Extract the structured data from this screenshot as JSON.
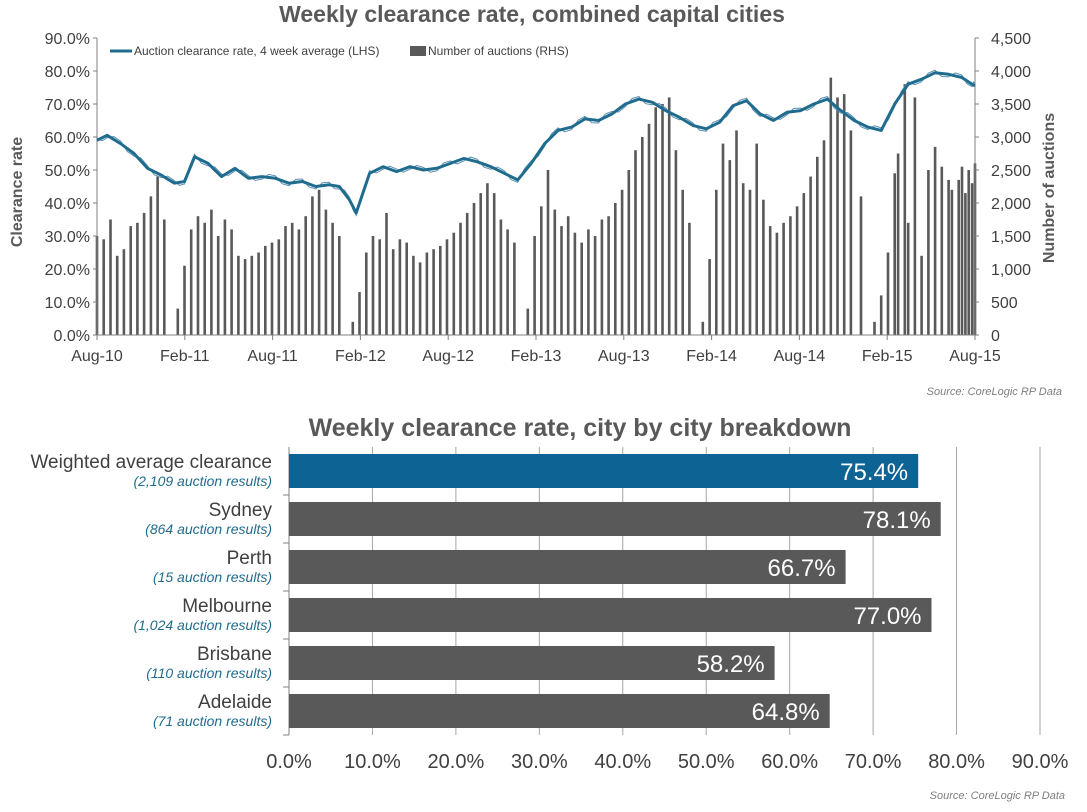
{
  "chart_data": [
    {
      "type": "line",
      "title": "Weekly clearance rate, combined capital cities",
      "ylabel": "Clearance rate",
      "y2label": "Number of auctions",
      "ylim": [
        0,
        90
      ],
      "y2lim": [
        0,
        4500
      ],
      "yticks": [
        "0.0%",
        "10.0%",
        "20.0%",
        "30.0%",
        "40.0%",
        "50.0%",
        "60.0%",
        "70.0%",
        "80.0%",
        "90.0%"
      ],
      "y2ticks": [
        "0",
        "500",
        "1,000",
        "1,500",
        "2,000",
        "2,500",
        "3,000",
        "3,500",
        "4,000",
        "4,500"
      ],
      "xticks": [
        "Aug-10",
        "Feb-11",
        "Aug-11",
        "Feb-12",
        "Aug-12",
        "Feb-13",
        "Aug-13",
        "Feb-14",
        "Aug-14",
        "Feb-15",
        "Aug-15"
      ],
      "xlim": [
        "2010-08-01",
        "2015-08-01"
      ],
      "grid": false,
      "legend": "top-left",
      "source": "Source: CoreLogic RP Data",
      "series": [
        {
          "name": "Auction clearance rate, 4 week average (LHS)",
          "axis": "left",
          "type": "line",
          "color": "#1f6c8e",
          "points": [
            [
              "2010-08-01",
              59.0
            ],
            [
              "2010-08-22",
              60.5
            ],
            [
              "2010-09-19",
              58.0
            ],
            [
              "2010-10-17",
              55.0
            ],
            [
              "2010-11-14",
              50.5
            ],
            [
              "2010-12-12",
              48.5
            ],
            [
              "2011-01-09",
              46.0
            ],
            [
              "2011-01-30",
              46.5
            ],
            [
              "2011-02-20",
              54.0
            ],
            [
              "2011-03-20",
              52.0
            ],
            [
              "2011-04-17",
              48.0
            ],
            [
              "2011-05-15",
              50.5
            ],
            [
              "2011-06-12",
              47.5
            ],
            [
              "2011-07-10",
              48.0
            ],
            [
              "2011-08-07",
              47.5
            ],
            [
              "2011-09-04",
              46.0
            ],
            [
              "2011-10-02",
              46.5
            ],
            [
              "2011-10-30",
              45.0
            ],
            [
              "2011-11-27",
              45.5
            ],
            [
              "2011-12-18",
              45.0
            ],
            [
              "2012-01-08",
              41.0
            ],
            [
              "2012-01-22",
              37.0
            ],
            [
              "2012-02-19",
              49.0
            ],
            [
              "2012-03-18",
              51.0
            ],
            [
              "2012-04-15",
              49.5
            ],
            [
              "2012-05-13",
              51.0
            ],
            [
              "2012-06-10",
              50.0
            ],
            [
              "2012-07-08",
              50.5
            ],
            [
              "2012-08-05",
              52.0
            ],
            [
              "2012-09-02",
              53.5
            ],
            [
              "2012-09-30",
              52.5
            ],
            [
              "2012-10-28",
              51.0
            ],
            [
              "2012-11-25",
              49.0
            ],
            [
              "2012-12-23",
              47.0
            ],
            [
              "2013-01-20",
              52.0
            ],
            [
              "2013-02-17",
              58.0
            ],
            [
              "2013-03-17",
              62.0
            ],
            [
              "2013-04-14",
              63.0
            ],
            [
              "2013-05-12",
              65.5
            ],
            [
              "2013-06-09",
              65.0
            ],
            [
              "2013-07-07",
              67.0
            ],
            [
              "2013-08-04",
              70.0
            ],
            [
              "2013-09-01",
              71.5
            ],
            [
              "2013-09-29",
              70.5
            ],
            [
              "2013-10-27",
              68.0
            ],
            [
              "2013-11-24",
              66.0
            ],
            [
              "2013-12-22",
              63.5
            ],
            [
              "2014-01-19",
              62.5
            ],
            [
              "2014-02-16",
              64.5
            ],
            [
              "2014-03-16",
              69.5
            ],
            [
              "2014-04-13",
              71.0
            ],
            [
              "2014-05-11",
              67.0
            ],
            [
              "2014-06-08",
              65.0
            ],
            [
              "2014-07-06",
              67.5
            ],
            [
              "2014-08-03",
              68.0
            ],
            [
              "2014-08-31",
              70.0
            ],
            [
              "2014-09-28",
              71.5
            ],
            [
              "2014-10-26",
              68.0
            ],
            [
              "2014-11-23",
              65.0
            ],
            [
              "2014-12-21",
              63.0
            ],
            [
              "2015-01-18",
              62.0
            ],
            [
              "2015-02-15",
              70.0
            ],
            [
              "2015-03-15",
              76.0
            ],
            [
              "2015-04-12",
              77.5
            ],
            [
              "2015-05-10",
              79.5
            ],
            [
              "2015-06-07",
              79.0
            ],
            [
              "2015-07-05",
              78.0
            ],
            [
              "2015-07-26",
              76.0
            ],
            [
              "2015-08-01",
              75.5
            ]
          ]
        },
        {
          "name": "Number of auctions (RHS)",
          "axis": "right",
          "type": "bar",
          "color": "#595959",
          "points": [
            [
              "2010-08-01",
              1500
            ],
            [
              "2010-08-15",
              1450
            ],
            [
              "2010-08-29",
              1750
            ],
            [
              "2010-09-12",
              1200
            ],
            [
              "2010-09-26",
              1300
            ],
            [
              "2010-10-10",
              1650
            ],
            [
              "2010-10-24",
              1700
            ],
            [
              "2010-11-07",
              1850
            ],
            [
              "2010-11-21",
              2100
            ],
            [
              "2010-12-05",
              2400
            ],
            [
              "2010-12-19",
              1750
            ],
            [
              "2011-01-02",
              0
            ],
            [
              "2011-01-16",
              400
            ],
            [
              "2011-01-30",
              1050
            ],
            [
              "2011-02-13",
              1600
            ],
            [
              "2011-02-27",
              1800
            ],
            [
              "2011-03-13",
              1700
            ],
            [
              "2011-03-27",
              1900
            ],
            [
              "2011-04-10",
              1500
            ],
            [
              "2011-04-24",
              1750
            ],
            [
              "2011-05-08",
              1600
            ],
            [
              "2011-05-22",
              1200
            ],
            [
              "2011-06-05",
              1150
            ],
            [
              "2011-06-19",
              1200
            ],
            [
              "2011-07-03",
              1250
            ],
            [
              "2011-07-17",
              1350
            ],
            [
              "2011-07-31",
              1400
            ],
            [
              "2011-08-14",
              1450
            ],
            [
              "2011-08-28",
              1650
            ],
            [
              "2011-09-11",
              1700
            ],
            [
              "2011-09-25",
              1600
            ],
            [
              "2011-10-09",
              1800
            ],
            [
              "2011-10-23",
              2100
            ],
            [
              "2011-11-06",
              2200
            ],
            [
              "2011-11-20",
              1900
            ],
            [
              "2011-12-04",
              1700
            ],
            [
              "2011-12-18",
              1500
            ],
            [
              "2012-01-01",
              0
            ],
            [
              "2012-01-15",
              200
            ],
            [
              "2012-01-29",
              650
            ],
            [
              "2012-02-12",
              1250
            ],
            [
              "2012-02-26",
              1500
            ],
            [
              "2012-03-11",
              1450
            ],
            [
              "2012-03-25",
              1850
            ],
            [
              "2012-04-08",
              1300
            ],
            [
              "2012-04-22",
              1450
            ],
            [
              "2012-05-06",
              1400
            ],
            [
              "2012-05-20",
              1200
            ],
            [
              "2012-06-03",
              1100
            ],
            [
              "2012-06-17",
              1250
            ],
            [
              "2012-07-01",
              1300
            ],
            [
              "2012-07-15",
              1350
            ],
            [
              "2012-07-29",
              1450
            ],
            [
              "2012-08-12",
              1550
            ],
            [
              "2012-08-26",
              1700
            ],
            [
              "2012-09-09",
              1850
            ],
            [
              "2012-09-23",
              2000
            ],
            [
              "2012-10-07",
              2150
            ],
            [
              "2012-10-21",
              2300
            ],
            [
              "2012-11-04",
              2150
            ],
            [
              "2012-11-18",
              1750
            ],
            [
              "2012-12-02",
              1600
            ],
            [
              "2012-12-16",
              1400
            ],
            [
              "2012-12-30",
              0
            ],
            [
              "2013-01-13",
              400
            ],
            [
              "2013-01-27",
              1500
            ],
            [
              "2013-02-10",
              1950
            ],
            [
              "2013-02-24",
              2500
            ],
            [
              "2013-03-10",
              1900
            ],
            [
              "2013-03-24",
              1650
            ],
            [
              "2013-04-07",
              1800
            ],
            [
              "2013-04-21",
              1550
            ],
            [
              "2013-05-05",
              1400
            ],
            [
              "2013-05-19",
              1600
            ],
            [
              "2013-06-02",
              1500
            ],
            [
              "2013-06-16",
              1750
            ],
            [
              "2013-06-30",
              1800
            ],
            [
              "2013-07-14",
              2000
            ],
            [
              "2013-07-28",
              2200
            ],
            [
              "2013-08-11",
              2500
            ],
            [
              "2013-08-25",
              2800
            ],
            [
              "2013-09-08",
              3000
            ],
            [
              "2013-09-22",
              3200
            ],
            [
              "2013-10-06",
              3450
            ],
            [
              "2013-10-20",
              3500
            ],
            [
              "2013-11-03",
              3600
            ],
            [
              "2013-11-17",
              2800
            ],
            [
              "2013-12-01",
              2200
            ],
            [
              "2013-12-15",
              1700
            ],
            [
              "2013-12-29",
              0
            ],
            [
              "2014-01-12",
              200
            ],
            [
              "2014-01-26",
              1150
            ],
            [
              "2014-02-09",
              2200
            ],
            [
              "2014-02-23",
              2900
            ],
            [
              "2014-03-09",
              2650
            ],
            [
              "2014-03-23",
              3100
            ],
            [
              "2014-04-06",
              2300
            ],
            [
              "2014-04-20",
              2200
            ],
            [
              "2014-05-04",
              2900
            ],
            [
              "2014-05-18",
              2050
            ],
            [
              "2014-06-01",
              1650
            ],
            [
              "2014-06-15",
              1550
            ],
            [
              "2014-06-29",
              1700
            ],
            [
              "2014-07-13",
              1800
            ],
            [
              "2014-07-27",
              1950
            ],
            [
              "2014-08-10",
              2150
            ],
            [
              "2014-08-24",
              2400
            ],
            [
              "2014-09-07",
              2700
            ],
            [
              "2014-09-21",
              2950
            ],
            [
              "2014-10-05",
              3900
            ],
            [
              "2014-10-19",
              3600
            ],
            [
              "2014-11-02",
              3650
            ],
            [
              "2014-11-16",
              3100
            ],
            [
              "2014-12-07",
              2100
            ],
            [
              "2014-12-21",
              0
            ],
            [
              "2015-01-04",
              200
            ],
            [
              "2015-01-18",
              600
            ],
            [
              "2015-02-01",
              1250
            ],
            [
              "2015-02-15",
              2450
            ],
            [
              "2015-02-22",
              2750
            ],
            [
              "2015-03-08",
              3800
            ],
            [
              "2015-03-15",
              1700
            ],
            [
              "2015-03-29",
              3600
            ],
            [
              "2015-04-12",
              1200
            ],
            [
              "2015-04-26",
              2500
            ],
            [
              "2015-05-10",
              2850
            ],
            [
              "2015-05-24",
              2550
            ],
            [
              "2015-06-07",
              2350
            ],
            [
              "2015-06-14",
              2200
            ],
            [
              "2015-06-28",
              2350
            ],
            [
              "2015-07-05",
              2550
            ],
            [
              "2015-07-12",
              2150
            ],
            [
              "2015-07-19",
              2500
            ],
            [
              "2015-07-26",
              2300
            ],
            [
              "2015-08-01",
              2600
            ]
          ]
        }
      ]
    },
    {
      "type": "bar",
      "orientation": "horizontal",
      "title": "Weekly clearance rate, city by city breakdown",
      "xlim": [
        0,
        90
      ],
      "xticks": [
        "0.0%",
        "10.0%",
        "20.0%",
        "30.0%",
        "40.0%",
        "50.0%",
        "60.0%",
        "70.0%",
        "80.0%",
        "90.0%"
      ],
      "grid": "vertical",
      "source": "Source: CoreLogic RP Data",
      "categories": [
        "Weighted average clearance",
        "Sydney",
        "Perth",
        "Melbourne",
        "Brisbane",
        "Adelaide"
      ],
      "subtitles": [
        "(2,109 auction results)",
        "(864 auction results)",
        "(15 auction results)",
        "(1,024 auction results)",
        "(110 auction results)",
        "(71 auction results)"
      ],
      "values": [
        75.4,
        78.1,
        66.7,
        77.0,
        58.2,
        64.8
      ],
      "value_labels": [
        "75.4%",
        "78.1%",
        "66.7%",
        "77.0%",
        "58.2%",
        "64.8%"
      ],
      "colors": [
        "#0e6395",
        "#595959",
        "#595959",
        "#595959",
        "#595959",
        "#595959"
      ]
    }
  ]
}
